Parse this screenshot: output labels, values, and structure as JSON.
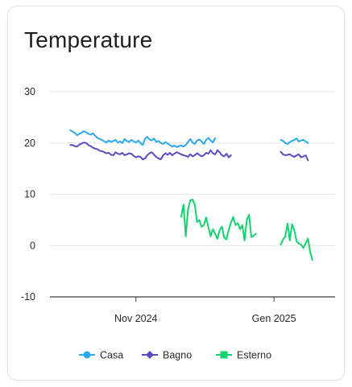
{
  "card": {
    "title": "Temperature"
  },
  "chart_data": {
    "type": "line",
    "title": "Temperature",
    "xlabel": "",
    "ylabel": "",
    "x_range": [
      "2024-09-24",
      "2025-01-28"
    ],
    "ylim": [
      -10,
      30
    ],
    "y_ticks": [
      30,
      20,
      10,
      0,
      -10
    ],
    "x_ticks": [
      {
        "date": "2024-11-01",
        "label": "Nov 2024"
      },
      {
        "date": "2025-01-01",
        "label": "Gen 2025"
      }
    ],
    "grid": true,
    "legend_position": "bottom",
    "series": [
      {
        "name": "Casa",
        "color": "#29a8f0",
        "marker": "circle",
        "segments": [
          {
            "start": "2024-10-03",
            "values": [
              22.5,
              22.2,
              22.0,
              21.5,
              21.8,
              22.0,
              22.3,
              22.1,
              21.8,
              21.6,
              21.9,
              21.4,
              21.0,
              20.8,
              20.6,
              20.3,
              20.1,
              20.5,
              20.2,
              20.4,
              20.6,
              20.1,
              20.3,
              20.0,
              20.8,
              20.4,
              20.2,
              20.6,
              20.3,
              20.1,
              20.5,
              20.0,
              19.6,
              20.8,
              21.2,
              20.7,
              20.5,
              20.9,
              20.2,
              20.4,
              20.0,
              19.8,
              20.2,
              19.9,
              19.6,
              19.3,
              19.5,
              19.2,
              19.4,
              19.5,
              19.3,
              19.6,
              20.2,
              20.8,
              20.1,
              19.8,
              20.5,
              20.7,
              20.3,
              19.8,
              20.6,
              21.0,
              20.5,
              20.1,
              20.9
            ]
          },
          {
            "start": "2025-01-04",
            "values": [
              20.6,
              20.4,
              20.0,
              19.8,
              20.2,
              20.4,
              20.6,
              20.9,
              20.3,
              20.5,
              20.6,
              20.3,
              20.0
            ]
          }
        ]
      },
      {
        "name": "Bagno",
        "color": "#5a4cc0",
        "marker": "diamond",
        "segments": [
          {
            "start": "2024-10-03",
            "values": [
              19.6,
              19.6,
              19.4,
              19.3,
              19.7,
              19.9,
              20.1,
              20.0,
              19.6,
              19.4,
              19.1,
              18.9,
              18.8,
              18.5,
              18.4,
              18.2,
              18.0,
              18.1,
              17.7,
              17.6,
              18.2,
              17.9,
              17.8,
              18.1,
              17.6,
              17.8,
              18.0,
              17.9,
              17.5,
              17.2,
              17.4,
              17.3,
              16.8,
              17.0,
              17.6,
              18.0,
              18.2,
              17.7,
              17.3,
              17.0,
              16.8,
              17.6,
              18.0,
              17.7,
              18.1,
              17.6,
              17.9,
              18.2,
              18.0,
              17.8,
              17.6,
              17.5,
              17.3,
              17.8,
              17.4,
              17.6,
              18.0,
              17.7,
              17.4,
              17.6,
              18.1,
              17.9,
              18.6,
              18.0,
              17.8,
              18.6,
              18.2,
              17.6,
              17.4,
              17.9,
              17.2,
              17.6
            ]
          },
          {
            "start": "2025-01-04",
            "values": [
              18.3,
              17.8,
              17.6,
              17.7,
              17.8,
              17.5,
              17.3,
              17.6,
              17.8,
              17.2,
              17.4,
              17.6,
              16.6
            ]
          }
        ]
      },
      {
        "name": "Esterno",
        "color": "#12d36f",
        "marker": "square",
        "segments": [
          {
            "start": "2024-11-21",
            "values": [
              5.6,
              8.0,
              1.8,
              7.0,
              8.8,
              9.0,
              8.0,
              4.6,
              5.0,
              3.7,
              4.0,
              5.5,
              3.6,
              1.8,
              3.2,
              2.3,
              1.3,
              3.0,
              3.7,
              1.6,
              1.2,
              3.1,
              4.5,
              5.6,
              4.0,
              4.4,
              3.2,
              4.0,
              1.0,
              5.0,
              6.0,
              1.7,
              1.9,
              2.3
            ]
          },
          {
            "start": "2025-01-04",
            "values": [
              0.2,
              1.2,
              1.8,
              4.3,
              1.0,
              4.2,
              3.0,
              0.8,
              0.4,
              0.2,
              -0.5,
              0.5,
              1.4,
              -1.3,
              -2.8
            ]
          }
        ]
      }
    ]
  }
}
